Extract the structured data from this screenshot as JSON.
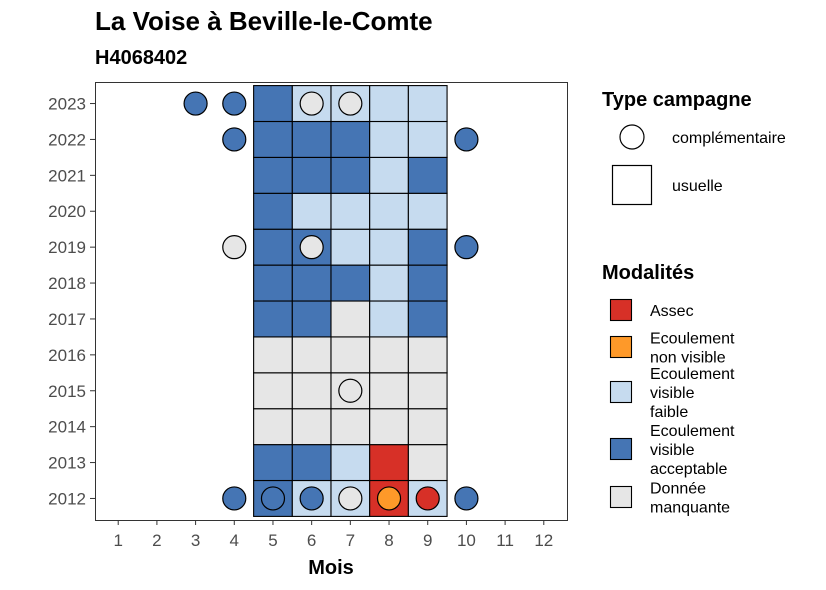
{
  "title": "La Voise à Beville-le-Comte",
  "subtitle": "H4068402",
  "chart_data": {
    "type": "heatmap",
    "xlabel": "Mois",
    "ylabel": "",
    "x_categories": [
      "1",
      "2",
      "3",
      "4",
      "5",
      "6",
      "7",
      "8",
      "9",
      "10",
      "11",
      "12"
    ],
    "y_categories": [
      "2012",
      "2013",
      "2014",
      "2015",
      "2016",
      "2017",
      "2018",
      "2019",
      "2020",
      "2021",
      "2022",
      "2023"
    ],
    "colors": {
      "assec": "#d73027",
      "ecoulement_non_visible": "#fe9929",
      "ecoulement_visible_faible": "#c6dbef",
      "ecoulement_visible_acceptable": "#4575b4",
      "donnee_manquante": "#e6e6e6"
    },
    "tiles": [
      {
        "year": "2012",
        "month": 5,
        "modalite": "ecoulement_visible_acceptable"
      },
      {
        "year": "2012",
        "month": 6,
        "modalite": "ecoulement_visible_faible"
      },
      {
        "year": "2012",
        "month": 7,
        "modalite": "ecoulement_visible_faible"
      },
      {
        "year": "2012",
        "month": 8,
        "modalite": "assec"
      },
      {
        "year": "2012",
        "month": 9,
        "modalite": "ecoulement_visible_faible"
      },
      {
        "year": "2013",
        "month": 5,
        "modalite": "ecoulement_visible_acceptable"
      },
      {
        "year": "2013",
        "month": 6,
        "modalite": "ecoulement_visible_acceptable"
      },
      {
        "year": "2013",
        "month": 7,
        "modalite": "ecoulement_visible_faible"
      },
      {
        "year": "2013",
        "month": 8,
        "modalite": "assec"
      },
      {
        "year": "2013",
        "month": 9,
        "modalite": "donnee_manquante"
      },
      {
        "year": "2014",
        "month": 5,
        "modalite": "donnee_manquante"
      },
      {
        "year": "2014",
        "month": 6,
        "modalite": "donnee_manquante"
      },
      {
        "year": "2014",
        "month": 7,
        "modalite": "donnee_manquante"
      },
      {
        "year": "2014",
        "month": 8,
        "modalite": "donnee_manquante"
      },
      {
        "year": "2014",
        "month": 9,
        "modalite": "donnee_manquante"
      },
      {
        "year": "2015",
        "month": 5,
        "modalite": "donnee_manquante"
      },
      {
        "year": "2015",
        "month": 6,
        "modalite": "donnee_manquante"
      },
      {
        "year": "2015",
        "month": 7,
        "modalite": "donnee_manquante"
      },
      {
        "year": "2015",
        "month": 8,
        "modalite": "donnee_manquante"
      },
      {
        "year": "2015",
        "month": 9,
        "modalite": "donnee_manquante"
      },
      {
        "year": "2016",
        "month": 5,
        "modalite": "donnee_manquante"
      },
      {
        "year": "2016",
        "month": 6,
        "modalite": "donnee_manquante"
      },
      {
        "year": "2016",
        "month": 7,
        "modalite": "donnee_manquante"
      },
      {
        "year": "2016",
        "month": 8,
        "modalite": "donnee_manquante"
      },
      {
        "year": "2016",
        "month": 9,
        "modalite": "donnee_manquante"
      },
      {
        "year": "2017",
        "month": 5,
        "modalite": "ecoulement_visible_acceptable"
      },
      {
        "year": "2017",
        "month": 6,
        "modalite": "ecoulement_visible_acceptable"
      },
      {
        "year": "2017",
        "month": 7,
        "modalite": "donnee_manquante"
      },
      {
        "year": "2017",
        "month": 8,
        "modalite": "ecoulement_visible_faible"
      },
      {
        "year": "2017",
        "month": 9,
        "modalite": "ecoulement_visible_acceptable"
      },
      {
        "year": "2018",
        "month": 5,
        "modalite": "ecoulement_visible_acceptable"
      },
      {
        "year": "2018",
        "month": 6,
        "modalite": "ecoulement_visible_acceptable"
      },
      {
        "year": "2018",
        "month": 7,
        "modalite": "ecoulement_visible_acceptable"
      },
      {
        "year": "2018",
        "month": 8,
        "modalite": "ecoulement_visible_faible"
      },
      {
        "year": "2018",
        "month": 9,
        "modalite": "ecoulement_visible_acceptable"
      },
      {
        "year": "2019",
        "month": 5,
        "modalite": "ecoulement_visible_acceptable"
      },
      {
        "year": "2019",
        "month": 6,
        "modalite": "ecoulement_visible_acceptable"
      },
      {
        "year": "2019",
        "month": 7,
        "modalite": "ecoulement_visible_faible"
      },
      {
        "year": "2019",
        "month": 8,
        "modalite": "ecoulement_visible_faible"
      },
      {
        "year": "2019",
        "month": 9,
        "modalite": "ecoulement_visible_acceptable"
      },
      {
        "year": "2020",
        "month": 5,
        "modalite": "ecoulement_visible_acceptable"
      },
      {
        "year": "2020",
        "month": 6,
        "modalite": "ecoulement_visible_faible"
      },
      {
        "year": "2020",
        "month": 7,
        "modalite": "ecoulement_visible_faible"
      },
      {
        "year": "2020",
        "month": 8,
        "modalite": "ecoulement_visible_faible"
      },
      {
        "year": "2020",
        "month": 9,
        "modalite": "ecoulement_visible_faible"
      },
      {
        "year": "2021",
        "month": 5,
        "modalite": "ecoulement_visible_acceptable"
      },
      {
        "year": "2021",
        "month": 6,
        "modalite": "ecoulement_visible_acceptable"
      },
      {
        "year": "2021",
        "month": 7,
        "modalite": "ecoulement_visible_acceptable"
      },
      {
        "year": "2021",
        "month": 8,
        "modalite": "ecoulement_visible_faible"
      },
      {
        "year": "2021",
        "month": 9,
        "modalite": "ecoulement_visible_acceptable"
      },
      {
        "year": "2022",
        "month": 5,
        "modalite": "ecoulement_visible_acceptable"
      },
      {
        "year": "2022",
        "month": 6,
        "modalite": "ecoulement_visible_acceptable"
      },
      {
        "year": "2022",
        "month": 7,
        "modalite": "ecoulement_visible_acceptable"
      },
      {
        "year": "2022",
        "month": 8,
        "modalite": "ecoulement_visible_faible"
      },
      {
        "year": "2022",
        "month": 9,
        "modalite": "ecoulement_visible_faible"
      },
      {
        "year": "2023",
        "month": 5,
        "modalite": "ecoulement_visible_acceptable"
      },
      {
        "year": "2023",
        "month": 6,
        "modalite": "ecoulement_visible_faible"
      },
      {
        "year": "2023",
        "month": 7,
        "modalite": "ecoulement_visible_faible"
      },
      {
        "year": "2023",
        "month": 8,
        "modalite": "ecoulement_visible_faible"
      },
      {
        "year": "2023",
        "month": 9,
        "modalite": "ecoulement_visible_faible"
      }
    ],
    "points": [
      {
        "year": "2012",
        "month": 4,
        "modalite": "ecoulement_visible_acceptable"
      },
      {
        "year": "2012",
        "month": 5,
        "modalite": "ecoulement_visible_acceptable"
      },
      {
        "year": "2012",
        "month": 6,
        "modalite": "ecoulement_visible_acceptable"
      },
      {
        "year": "2012",
        "month": 7,
        "modalite": "donnee_manquante"
      },
      {
        "year": "2012",
        "month": 8,
        "modalite": "ecoulement_non_visible"
      },
      {
        "year": "2012",
        "month": 9,
        "modalite": "assec"
      },
      {
        "year": "2012",
        "month": 10,
        "modalite": "ecoulement_visible_acceptable"
      },
      {
        "year": "2015",
        "month": 7,
        "modalite": "donnee_manquante"
      },
      {
        "year": "2019",
        "month": 4,
        "modalite": "donnee_manquante"
      },
      {
        "year": "2019",
        "month": 6,
        "modalite": "donnee_manquante"
      },
      {
        "year": "2019",
        "month": 10,
        "modalite": "ecoulement_visible_acceptable"
      },
      {
        "year": "2022",
        "month": 4,
        "modalite": "ecoulement_visible_acceptable"
      },
      {
        "year": "2022",
        "month": 10,
        "modalite": "ecoulement_visible_acceptable"
      },
      {
        "year": "2023",
        "month": 3,
        "modalite": "ecoulement_visible_acceptable"
      },
      {
        "year": "2023",
        "month": 4,
        "modalite": "ecoulement_visible_acceptable"
      },
      {
        "year": "2023",
        "month": 6,
        "modalite": "donnee_manquante"
      },
      {
        "year": "2023",
        "month": 7,
        "modalite": "donnee_manquante"
      }
    ],
    "legend_campagne": {
      "title": "Type campagne",
      "items": [
        "complémentaire",
        "usuelle"
      ]
    },
    "legend_modalites": {
      "title": "Modalités",
      "items": [
        {
          "key": "assec",
          "lines": [
            "Assec"
          ]
        },
        {
          "key": "ecoulement_non_visible",
          "lines": [
            "Ecoulement",
            "non visible"
          ]
        },
        {
          "key": "ecoulement_visible_faible",
          "lines": [
            "Ecoulement",
            "visible",
            "faible"
          ]
        },
        {
          "key": "ecoulement_visible_acceptable",
          "lines": [
            "Ecoulement",
            "visible",
            "acceptable"
          ]
        },
        {
          "key": "donnee_manquante",
          "lines": [
            "Donnée",
            "manquante"
          ]
        }
      ]
    },
    "legend_position": "right"
  }
}
